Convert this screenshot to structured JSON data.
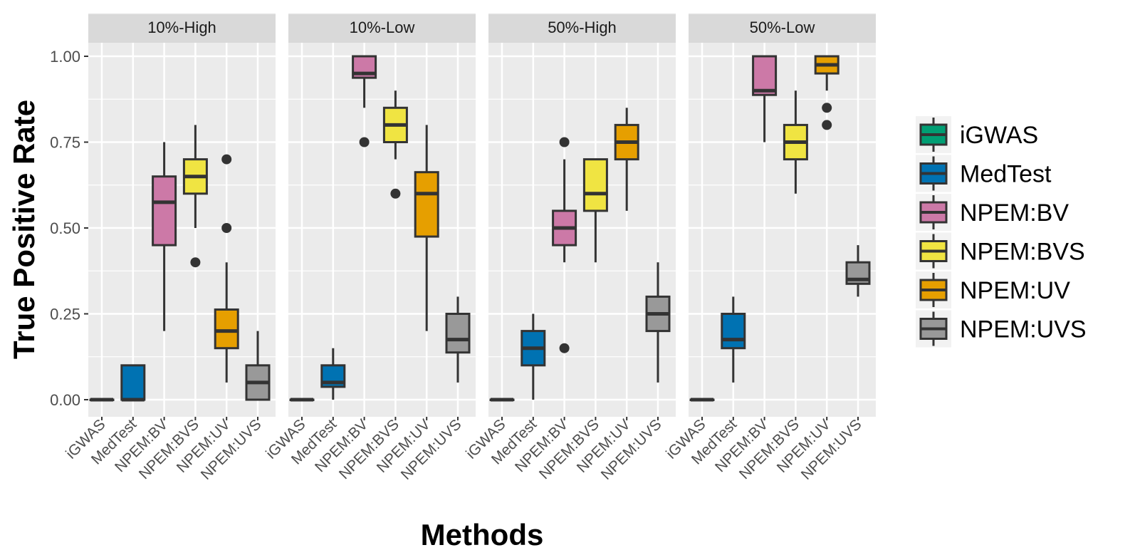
{
  "chart_data": {
    "type": "boxplot",
    "ylabel": "True Positive Rate",
    "xlabel": "Methods",
    "ylim": [
      -0.05,
      1.05
    ],
    "yticks": [
      0,
      0.25,
      0.5,
      0.75,
      1.0
    ],
    "ytick_labels": [
      "0.00",
      "0.25",
      "0.50",
      "0.75",
      "1.00"
    ],
    "grid": true,
    "legend_position": "right",
    "categories": [
      "iGWAS",
      "MedTest",
      "NPEM:BV",
      "NPEM:BVS",
      "NPEM:UV",
      "NPEM:UVS"
    ],
    "colors": {
      "iGWAS": "#009E73",
      "MedTest": "#0072B2",
      "NPEM:BV": "#CC79A7",
      "NPEM:BVS": "#F0E442",
      "NPEM:UV": "#E69F00",
      "NPEM:UVS": "#999999"
    },
    "legend": [
      "iGWAS",
      "MedTest",
      "NPEM:BV",
      "NPEM:BVS",
      "NPEM:UV",
      "NPEM:UVS"
    ],
    "facets": [
      {
        "title": "10%-High",
        "boxes": [
          {
            "method": "iGWAS",
            "min": 0,
            "q1": 0,
            "median": 0,
            "q3": 0,
            "max": 0,
            "outliers": []
          },
          {
            "method": "MedTest",
            "min": 0,
            "q1": 0,
            "median": 0,
            "q3": 0.1,
            "max": 0.1,
            "outliers": []
          },
          {
            "method": "NPEM:BV",
            "min": 0.2,
            "q1": 0.45,
            "median": 0.575,
            "q3": 0.65,
            "max": 0.75,
            "outliers": []
          },
          {
            "method": "NPEM:BVS",
            "min": 0.5,
            "q1": 0.6,
            "median": 0.65,
            "q3": 0.7,
            "max": 0.8,
            "outliers": [
              0.4
            ]
          },
          {
            "method": "NPEM:UV",
            "min": 0.05,
            "q1": 0.15,
            "median": 0.2,
            "q3": 0.2625,
            "max": 0.4,
            "outliers": [
              0.5,
              0.7
            ]
          },
          {
            "method": "NPEM:UVS",
            "min": 0,
            "q1": 0,
            "median": 0.05,
            "q3": 0.1,
            "max": 0.2,
            "outliers": []
          }
        ]
      },
      {
        "title": "10%-Low",
        "boxes": [
          {
            "method": "iGWAS",
            "min": 0,
            "q1": 0,
            "median": 0,
            "q3": 0,
            "max": 0,
            "outliers": []
          },
          {
            "method": "MedTest",
            "min": 0,
            "q1": 0.0375,
            "median": 0.05,
            "q3": 0.1,
            "max": 0.15,
            "outliers": []
          },
          {
            "method": "NPEM:BV",
            "min": 0.85,
            "q1": 0.9375,
            "median": 0.95,
            "q3": 1.0,
            "max": 1.0,
            "outliers": [
              0.75
            ]
          },
          {
            "method": "NPEM:BVS",
            "min": 0.7,
            "q1": 0.75,
            "median": 0.8,
            "q3": 0.85,
            "max": 0.9,
            "outliers": [
              0.6
            ]
          },
          {
            "method": "NPEM:UV",
            "min": 0.2,
            "q1": 0.475,
            "median": 0.6,
            "q3": 0.6625,
            "max": 0.8,
            "outliers": []
          },
          {
            "method": "NPEM:UVS",
            "min": 0.05,
            "q1": 0.1375,
            "median": 0.175,
            "q3": 0.25,
            "max": 0.3,
            "outliers": []
          }
        ]
      },
      {
        "title": "50%-High",
        "boxes": [
          {
            "method": "iGWAS",
            "min": 0,
            "q1": 0,
            "median": 0,
            "q3": 0,
            "max": 0,
            "outliers": []
          },
          {
            "method": "MedTest",
            "min": 0,
            "q1": 0.1,
            "median": 0.15,
            "q3": 0.2,
            "max": 0.25,
            "outliers": []
          },
          {
            "method": "NPEM:BV",
            "min": 0.4,
            "q1": 0.45,
            "median": 0.5,
            "q3": 0.55,
            "max": 0.7,
            "outliers": [
              0.15,
              0.75
            ]
          },
          {
            "method": "NPEM:BVS",
            "min": 0.4,
            "q1": 0.55,
            "median": 0.6,
            "q3": 0.7,
            "max": 0.7,
            "outliers": []
          },
          {
            "method": "NPEM:UV",
            "min": 0.55,
            "q1": 0.7,
            "median": 0.75,
            "q3": 0.8,
            "max": 0.85,
            "outliers": []
          },
          {
            "method": "NPEM:UVS",
            "min": 0.05,
            "q1": 0.2,
            "median": 0.25,
            "q3": 0.3,
            "max": 0.4,
            "outliers": []
          }
        ]
      },
      {
        "title": "50%-Low",
        "boxes": [
          {
            "method": "iGWAS",
            "min": 0,
            "q1": 0,
            "median": 0,
            "q3": 0,
            "max": 0,
            "outliers": []
          },
          {
            "method": "MedTest",
            "min": 0.05,
            "q1": 0.15,
            "median": 0.175,
            "q3": 0.25,
            "max": 0.3,
            "outliers": []
          },
          {
            "method": "NPEM:BV",
            "min": 0.75,
            "q1": 0.8875,
            "median": 0.9,
            "q3": 1.0,
            "max": 1.0,
            "outliers": []
          },
          {
            "method": "NPEM:BVS",
            "min": 0.6,
            "q1": 0.7,
            "median": 0.75,
            "q3": 0.8,
            "max": 0.9,
            "outliers": []
          },
          {
            "method": "NPEM:UV",
            "min": 0.9,
            "q1": 0.95,
            "median": 0.975,
            "q3": 1.0,
            "max": 1.0,
            "outliers": [
              0.8,
              0.85
            ]
          },
          {
            "method": "NPEM:UVS",
            "min": 0.3,
            "q1": 0.3375,
            "median": 0.35,
            "q3": 0.4,
            "max": 0.45,
            "outliers": []
          }
        ]
      }
    ]
  }
}
